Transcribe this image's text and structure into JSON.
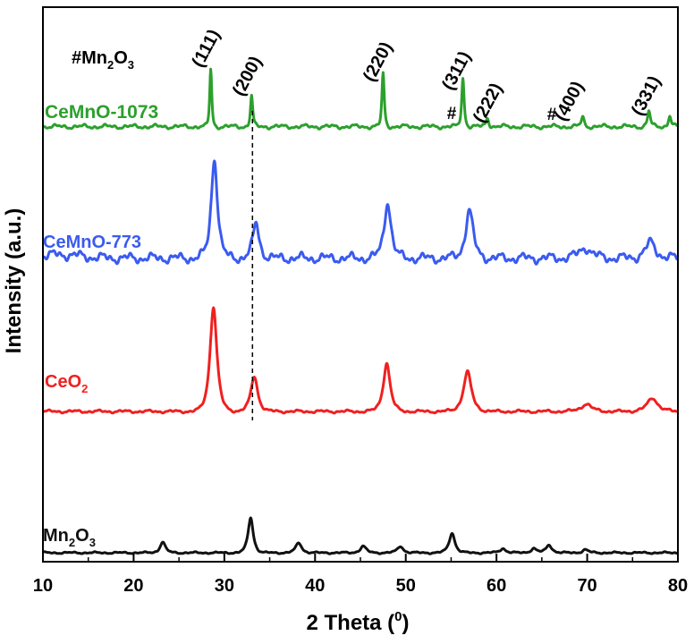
{
  "chart_data": {
    "type": "line",
    "title": "",
    "xlabel": "2 Theta (",
    "xlabel_sup": "0",
    "xlabel_end": ")",
    "ylabel": "Intensity (a.u.)",
    "xlim": [
      10,
      80
    ],
    "xticks": [
      "10",
      "20",
      "30",
      "40",
      "50",
      "60",
      "70",
      "80"
    ],
    "grid": false,
    "legend_note": {
      "prefix": "#",
      "text": "Mn",
      "sub1": "2",
      "mid": "O",
      "sub2": "3"
    },
    "reference_line_x": 33.1,
    "series": [
      {
        "name": "CeMnO-1073",
        "label_parts": [
          "CeMnO-1073"
        ],
        "color": "#2ca02c",
        "baseline": 0.3,
        "wobble": 0.6,
        "peaks": [
          [
            28.5,
            13,
            0.18
          ],
          [
            33.0,
            7,
            0.2
          ],
          [
            47.5,
            12,
            0.2
          ],
          [
            56.3,
            11,
            0.22
          ],
          [
            59.0,
            2,
            0.25
          ],
          [
            69.5,
            2.2,
            0.25
          ],
          [
            76.8,
            3.5,
            0.25
          ],
          [
            79.1,
            2.5,
            0.25
          ]
        ]
      },
      {
        "name": "CeMnO-773",
        "label_parts": [
          "CeMnO-773"
        ],
        "color": "#3a5bf0",
        "baseline": 0.3,
        "wobble": 1.4,
        "peaks": [
          [
            28.9,
            23,
            0.55
          ],
          [
            33.5,
            8,
            0.55
          ],
          [
            48.0,
            13,
            0.6
          ],
          [
            57.0,
            11,
            0.65
          ],
          [
            69.8,
            2.5,
            1.0
          ],
          [
            77.0,
            3.5,
            0.9
          ]
        ]
      },
      {
        "name": "CeO2",
        "label_parts": [
          "CeO",
          "2"
        ],
        "color": "#f02020",
        "baseline": 0.0,
        "wobble": 0.4,
        "peaks": [
          [
            28.8,
            24,
            0.6
          ],
          [
            33.3,
            8,
            0.6
          ],
          [
            47.9,
            11,
            0.6
          ],
          [
            56.8,
            9,
            0.7
          ],
          [
            69.9,
            1.7,
            0.9
          ],
          [
            77.2,
            3.1,
            0.9
          ]
        ]
      },
      {
        "name": "Mn2O3",
        "label_parts": [
          "Mn",
          "2",
          "O",
          "3"
        ],
        "color": "#111111",
        "baseline": 0.0,
        "wobble": 0.25,
        "peaks": [
          [
            23.2,
            2.5,
            0.45
          ],
          [
            32.9,
            8,
            0.45
          ],
          [
            38.2,
            2.3,
            0.5
          ],
          [
            45.3,
            1.5,
            0.5
          ],
          [
            49.4,
            1.5,
            0.5
          ],
          [
            55.1,
            4.5,
            0.5
          ],
          [
            60.7,
            1.0,
            0.5
          ],
          [
            64.1,
            1.0,
            0.5
          ],
          [
            65.8,
            1.8,
            0.5
          ],
          [
            69.8,
            0.7,
            0.5
          ]
        ]
      }
    ],
    "annotations": [
      {
        "text": "(111)",
        "x": 28.5
      },
      {
        "text": "(200)",
        "x": 33.1
      },
      {
        "text": "(220)",
        "x": 47.5
      },
      {
        "text": "(311)",
        "x": 56.3
      },
      {
        "text": "(222)",
        "x": 59.0
      },
      {
        "text": "(400)",
        "x": 69.5
      },
      {
        "text": "(331)",
        "x": 76.8
      },
      {
        "text": "#",
        "x": 55.1
      },
      {
        "text": "#",
        "x": 65.8
      }
    ]
  }
}
